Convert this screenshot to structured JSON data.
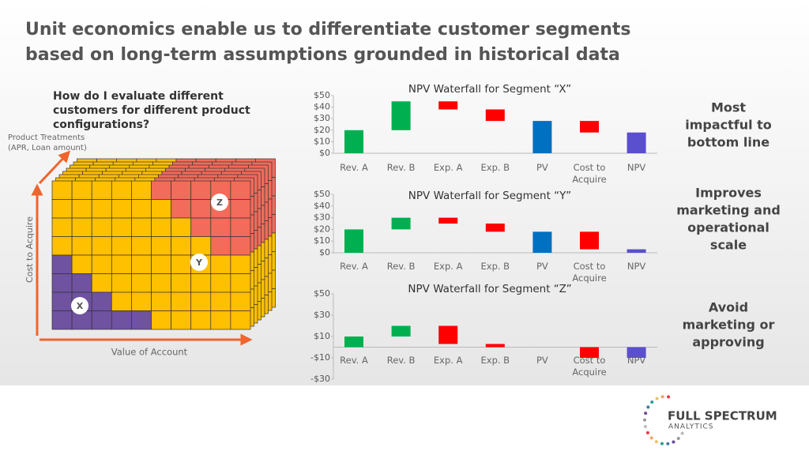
{
  "title": [
    "Unit economics enable us to differentiate customer segments",
    "based on long-term assumptions grounded in historical data"
  ],
  "diagram": {
    "question": [
      "How do I evaluate different",
      "customers for different product",
      "configurations?"
    ],
    "z_axis_label": [
      "Product Treatments",
      "(APR, Loan amount)"
    ],
    "y_axis_label": "Cost to Acquire",
    "x_axis_label": "Value of Account",
    "markers": [
      "X",
      "Y",
      "Z"
    ]
  },
  "chart_data": [
    {
      "type": "waterfall",
      "title": "NPV Waterfall for Segment “X”",
      "categories": [
        "Rev. A",
        "Rev. B",
        "Exp. A",
        "Exp. B",
        "PV",
        "Cost to Acquire",
        "NPV"
      ],
      "values": [
        20,
        25,
        -7,
        -10,
        28,
        -10,
        18
      ],
      "is_total": [
        false,
        false,
        false,
        false,
        true,
        false,
        true
      ],
      "colors": [
        "#00b050",
        "#00b050",
        "#ff0000",
        "#ff0000",
        "#0070c0",
        "#ff0000",
        "#5a4fcf"
      ],
      "ylim": [
        0,
        50
      ],
      "yticks": [
        {
          "value": 0,
          "label": "$0"
        },
        {
          "value": 10,
          "label": "$10"
        },
        {
          "value": 20,
          "label": "$20"
        },
        {
          "value": 30,
          "label": "$30"
        },
        {
          "value": 40,
          "label": "$40"
        },
        {
          "value": 50,
          "label": "$50"
        }
      ]
    },
    {
      "type": "waterfall",
      "title": "NPV Waterfall for Segment “Y”",
      "categories": [
        "Rev. A",
        "Rev. B",
        "Exp. A",
        "Exp. B",
        "PV",
        "Cost to Acquire",
        "NPV"
      ],
      "values": [
        20,
        10,
        -5,
        -7,
        18,
        -15,
        3
      ],
      "is_total": [
        false,
        false,
        false,
        false,
        true,
        false,
        true
      ],
      "colors": [
        "#00b050",
        "#00b050",
        "#ff0000",
        "#ff0000",
        "#0070c0",
        "#ff0000",
        "#5a4fcf"
      ],
      "ylim": [
        0,
        50
      ],
      "yticks": [
        {
          "value": 0,
          "label": "$0"
        },
        {
          "value": 10,
          "label": "$10"
        },
        {
          "value": 20,
          "label": "$20"
        },
        {
          "value": 30,
          "label": "$30"
        },
        {
          "value": 40,
          "label": "$40"
        },
        {
          "value": 50,
          "label": "$50"
        }
      ]
    },
    {
      "type": "waterfall",
      "title": "NPV Waterfall for Segment “Z”",
      "categories": [
        "Rev. A",
        "Rev. B",
        "Exp. A",
        "Exp. B",
        "PV",
        "Cost to Acquire",
        "NPV"
      ],
      "values": [
        10,
        10,
        -17,
        -3,
        0,
        -10,
        -10
      ],
      "is_total": [
        false,
        false,
        false,
        false,
        true,
        false,
        true
      ],
      "colors": [
        "#00b050",
        "#00b050",
        "#ff0000",
        "#ff0000",
        "#0070c0",
        "#ff0000",
        "#5a4fcf"
      ],
      "ylim": [
        -30,
        50
      ],
      "yticks": [
        {
          "value": -30,
          "label": "-$30"
        },
        {
          "value": -10,
          "label": "-$10"
        },
        {
          "value": 10,
          "label": "$10"
        },
        {
          "value": 30,
          "label": "$30"
        },
        {
          "value": 50,
          "label": "$50"
        }
      ]
    }
  ],
  "notes": [
    [
      "Most",
      "impactful to",
      "bottom line"
    ],
    [
      "Improves",
      "marketing and",
      "operational",
      "scale"
    ],
    [
      "Avoid",
      "marketing or",
      "approving"
    ]
  ],
  "logo": [
    "FULL SPECTRUM",
    "ANALYTICS"
  ]
}
